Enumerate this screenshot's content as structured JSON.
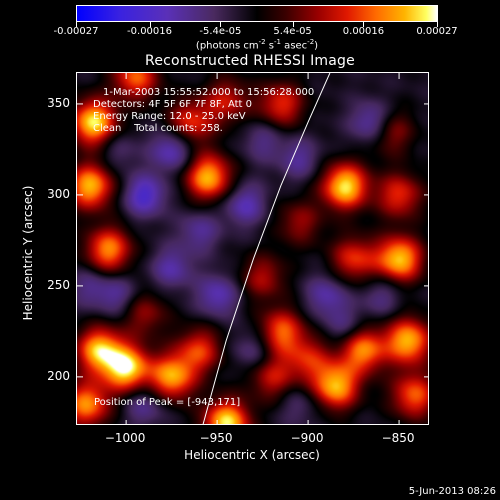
{
  "colorbar": {
    "tick_labels": [
      "-0.00027",
      "-0.00016",
      "-5.4e-05",
      "5.4e-05",
      "0.00016",
      "0.00027"
    ],
    "units_text": "(photons cm",
    "units_exp1": "-2",
    "units_mid": " s",
    "units_exp2": "-1",
    "units_mid2": " asec",
    "units_exp3": "-2",
    "units_end": ")"
  },
  "title": "Reconstructed RHESSI Image",
  "annotations": {
    "time_range": "1-Mar-2003 15:55:52.000 to 15:56:28.000",
    "detectors": "Detectors: 4F 5F 6F 7F 8F, Att 0",
    "energy": "Energy Range: 12.0 - 25.0 keV",
    "clean": "Clean    Total counts: 258.",
    "peak": "Position of Peak = [-943,171]"
  },
  "footer": {
    "date": "5-Jun-2013 08:26"
  },
  "chart_data": {
    "type": "heatmap",
    "title": "Reconstructed RHESSI Image",
    "xlabel": "Heliocentric X (arcsec)",
    "ylabel": "Heliocentric Y (arcsec)",
    "xlim": [
      -1027,
      -833
    ],
    "ylim": [
      173,
      367
    ],
    "x_ticks": [
      -1000,
      -950,
      -900,
      -850
    ],
    "x_tick_labels": [
      "−1000",
      "−950",
      "−900",
      "−850"
    ],
    "y_ticks": [
      200,
      250,
      300,
      350
    ],
    "y_tick_labels": [
      "200",
      "250",
      "300",
      "350"
    ],
    "colorbar_range": [
      -0.00027,
      0.00027
    ],
    "colormap": "blue-purple-black-red-orange-yellow-white",
    "peak_position": [
      -943,
      171
    ],
    "limb_curve": [
      [
        -958,
        173
      ],
      [
        -945,
        220
      ],
      [
        -930,
        265
      ],
      [
        -915,
        305
      ],
      [
        -900,
        340
      ],
      [
        -888,
        367
      ]
    ],
    "hotspots": [
      {
        "x": -1018,
        "y": 340,
        "v": 1.0
      },
      {
        "x": -1020,
        "y": 305,
        "v": 0.9
      },
      {
        "x": -1010,
        "y": 270,
        "v": 0.8
      },
      {
        "x": -995,
        "y": 365,
        "v": 0.7
      },
      {
        "x": -965,
        "y": 340,
        "v": 0.6
      },
      {
        "x": -955,
        "y": 310,
        "v": 0.9
      },
      {
        "x": -945,
        "y": 352,
        "v": 0.5
      },
      {
        "x": -915,
        "y": 350,
        "v": 0.6
      },
      {
        "x": -905,
        "y": 285,
        "v": 0.4
      },
      {
        "x": -880,
        "y": 305,
        "v": 1.0
      },
      {
        "x": -850,
        "y": 300,
        "v": 0.6
      },
      {
        "x": -850,
        "y": 265,
        "v": 0.95
      },
      {
        "x": -875,
        "y": 265,
        "v": 0.6
      },
      {
        "x": -855,
        "y": 335,
        "v": 0.45
      },
      {
        "x": -1015,
        "y": 215,
        "v": 0.9
      },
      {
        "x": -1000,
        "y": 205,
        "v": 1.0
      },
      {
        "x": -1022,
        "y": 185,
        "v": 0.8
      },
      {
        "x": -975,
        "y": 200,
        "v": 0.85
      },
      {
        "x": -960,
        "y": 215,
        "v": 0.6
      },
      {
        "x": -945,
        "y": 175,
        "v": 1.0
      },
      {
        "x": -920,
        "y": 200,
        "v": 0.5
      },
      {
        "x": -915,
        "y": 225,
        "v": 0.7
      },
      {
        "x": -900,
        "y": 210,
        "v": 0.5
      },
      {
        "x": -885,
        "y": 195,
        "v": 0.9
      },
      {
        "x": -870,
        "y": 215,
        "v": 0.8
      },
      {
        "x": -845,
        "y": 220,
        "v": 0.9
      },
      {
        "x": -842,
        "y": 190,
        "v": 0.7
      },
      {
        "x": -990,
        "y": 235,
        "v": 0.4
      },
      {
        "x": -925,
        "y": 255,
        "v": 0.45
      }
    ],
    "coldspots": [
      {
        "x": -990,
        "y": 300,
        "v": 1.0
      },
      {
        "x": -975,
        "y": 325,
        "v": 0.9
      },
      {
        "x": -935,
        "y": 295,
        "v": 0.8
      },
      {
        "x": -950,
        "y": 245,
        "v": 0.8
      },
      {
        "x": -975,
        "y": 260,
        "v": 0.7
      },
      {
        "x": -960,
        "y": 280,
        "v": 0.6
      },
      {
        "x": -1005,
        "y": 245,
        "v": 0.6
      },
      {
        "x": -925,
        "y": 330,
        "v": 0.5
      },
      {
        "x": -905,
        "y": 320,
        "v": 0.6
      },
      {
        "x": -890,
        "y": 245,
        "v": 0.7
      },
      {
        "x": -865,
        "y": 340,
        "v": 0.9
      },
      {
        "x": -860,
        "y": 245,
        "v": 0.5
      },
      {
        "x": -880,
        "y": 228,
        "v": 0.5
      },
      {
        "x": -930,
        "y": 215,
        "v": 0.55
      },
      {
        "x": -1020,
        "y": 250,
        "v": 0.5
      },
      {
        "x": -990,
        "y": 185,
        "v": 0.6
      },
      {
        "x": -905,
        "y": 185,
        "v": 0.4
      },
      {
        "x": -1005,
        "y": 325,
        "v": 0.4
      }
    ]
  }
}
